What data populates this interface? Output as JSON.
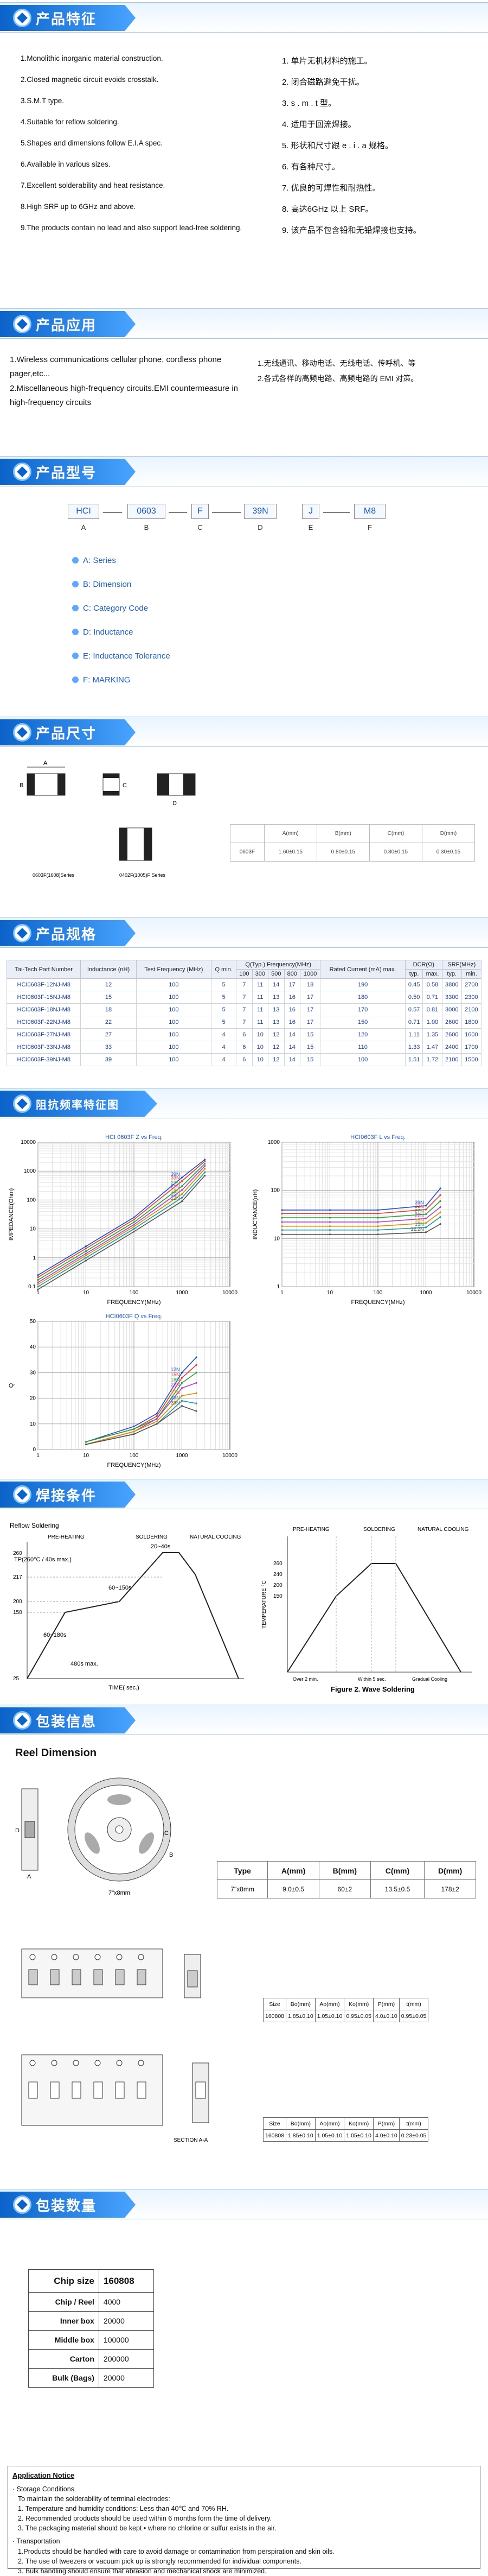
{
  "sections": {
    "features": "产品特征",
    "application": "产品应用",
    "part_number": "产品型号",
    "dimensions": "产品尺寸",
    "specifications": "产品规格",
    "impedance_curves": "阻抗频率特征图",
    "soldering": "焊接条件",
    "packaging": "包装信息",
    "quantity": "包装数量"
  },
  "features_en": [
    "1.Monolithic inorganic material construction.",
    "2.Closed magnetic circuit evoids crosstalk.",
    "3.S.M.T type.",
    "4.Suitable for reflow soldering.",
    "5.Shapes and dimensions follow E.I.A   spec.",
    "6.Available in various sizes.",
    "7.Excellent solderability and heat resistance.",
    "8.High SRF up to 6GHz and above.",
    "9.The products contain no lead and also support lead-free soldering."
  ],
  "features_cn": [
    "1. 单片无机材料的施工。",
    "2. 闭合磁路避免干扰。",
    "3. s . m . t 型。",
    "4. 适用于回流焊接。",
    "5. 形状和尺寸跟 e . i . a 规格。",
    "6. 有各种尺寸。",
    "7. 优良的可焊性和耐热性。",
    "8. 高达6GHz 以上 SRF。",
    "9. 该产品不包含铅和无铅焊接也支持。"
  ],
  "application_en": [
    "1.Wireless communications cellular phone, cordless phone pager,etc...",
    "2.Miscellaneous high-frequency circuits.EMI countermeasure in high-frequency circuits"
  ],
  "application_cn": [
    "1.无线通讯、移动电话、无线电话、传呼机、等",
    "2.各式各样的高频电路、高频电路的 EMI 对策。"
  ],
  "part_code": [
    {
      "code": "HCI",
      "letter": "A"
    },
    {
      "code": "0603",
      "letter": "B"
    },
    {
      "code": "F",
      "letter": "C"
    },
    {
      "code": "39N",
      "letter": "D"
    },
    {
      "code": "J",
      "letter": "E"
    },
    {
      "code": "M8",
      "letter": "F"
    }
  ],
  "part_legend": [
    "A: Series",
    "B: Dimension",
    "C: Category Code",
    "D: Inductance",
    "E: Inductance Tolerance",
    "F: MARKING"
  ],
  "dim_labels": {
    "caption_left": "0603F(1608)Series",
    "caption_right": "0402F(1005)F Series",
    "dim_a": "A",
    "dim_b": "B",
    "dim_c": "C",
    "dim_d": "D"
  },
  "dim_table": {
    "headers": [
      "",
      "A(mm)",
      "B(mm)",
      "C(mm)",
      "D(mm)"
    ],
    "row": [
      "0603F",
      "1.60±0.15",
      "0.80±0.15",
      "0.80±0.15",
      "0.30±0.15"
    ]
  },
  "spec_table": {
    "head1": [
      "Tai-Tech Part Number",
      "Inductance (nH)",
      "Test Frequency (MHz)",
      "Q min.",
      "Q(Typ.)  Frequency(MHz)",
      "Rated Current (mA) max.",
      "DCR(Ω)",
      "SRF(MHz)"
    ],
    "head2": [
      "100",
      "300",
      "500",
      "800",
      "1000",
      "typ.",
      "max.",
      "typ.",
      "min."
    ],
    "rows": [
      [
        "HCI0603F-12NJ-M8",
        "12",
        "100",
        "5",
        "7",
        "11",
        "14",
        "17",
        "18",
        "190",
        "0.45",
        "0.58",
        "3800",
        "2700"
      ],
      [
        "HCI0603F-15NJ-M8",
        "15",
        "100",
        "5",
        "7",
        "11",
        "13",
        "16",
        "17",
        "180",
        "0.50",
        "0.71",
        "3300",
        "2300"
      ],
      [
        "HCI0603F-18NJ-M8",
        "18",
        "100",
        "5",
        "7",
        "11",
        "13",
        "16",
        "17",
        "170",
        "0.57",
        "0.81",
        "3000",
        "2100"
      ],
      [
        "HCI0603F-22NJ-M8",
        "22",
        "100",
        "5",
        "7",
        "11",
        "13",
        "16",
        "17",
        "150",
        "0.71",
        "1.00",
        "2600",
        "1800"
      ],
      [
        "HCI0603F-27NJ-M8",
        "27",
        "100",
        "4",
        "6",
        "10",
        "12",
        "14",
        "15",
        "120",
        "1.11",
        "1.35",
        "2600",
        "1600"
      ],
      [
        "HCI0603F-33NJ-M8",
        "33",
        "100",
        "4",
        "6",
        "10",
        "12",
        "14",
        "15",
        "110",
        "1.33",
        "1.47",
        "2400",
        "1700"
      ],
      [
        "HCI0603F-39NJ-M8",
        "39",
        "100",
        "4",
        "6",
        "10",
        "12",
        "14",
        "15",
        "100",
        "1.51",
        "1.72",
        "2100",
        "1500"
      ]
    ]
  },
  "chart_data": [
    {
      "type": "line",
      "title": "HCI 0603F Z vs Freq.",
      "xlabel": "FREQUENCY(MHz)",
      "ylabel": "IMPEDANCE(Ohm)",
      "xscale": "log",
      "yscale": "log",
      "xlim": [
        1,
        10000
      ],
      "ylim": [
        0.1,
        10000
      ],
      "x": [
        1,
        10,
        100,
        1000,
        3000
      ],
      "series": [
        {
          "name": "39N",
          "values": [
            0.25,
            2.5,
            25,
            600,
            2500
          ]
        },
        {
          "name": "33N",
          "values": [
            0.21,
            2.1,
            21,
            450,
            2200
          ]
        },
        {
          "name": "27N",
          "values": [
            0.17,
            1.7,
            17,
            300,
            1800
          ]
        },
        {
          "name": "22N",
          "values": [
            0.14,
            1.4,
            14,
            220,
            1500
          ]
        },
        {
          "name": "18N",
          "values": [
            0.12,
            1.2,
            12,
            160,
            1200
          ]
        },
        {
          "name": "15N",
          "values": [
            0.1,
            1.0,
            10,
            120,
            900
          ]
        },
        {
          "name": "12N",
          "values": [
            0.08,
            0.8,
            8,
            90,
            700
          ]
        }
      ]
    },
    {
      "type": "line",
      "title": "HCI0603F L vs Freq.",
      "xlabel": "FREQUENCY(MHz)",
      "ylabel": "INDUCTANCE(nH)",
      "xscale": "log",
      "yscale": "log",
      "xlim": [
        1,
        10000
      ],
      "ylim": [
        1,
        1000
      ],
      "x": [
        1,
        10,
        100,
        1000,
        2000
      ],
      "series": [
        {
          "name": "39N",
          "values": [
            39,
            39,
            39,
            48,
            110
          ]
        },
        {
          "name": "33N",
          "values": [
            33,
            33,
            33,
            40,
            80
          ]
        },
        {
          "name": "27N",
          "values": [
            27,
            27,
            27,
            32,
            60
          ]
        },
        {
          "name": "22N",
          "values": [
            22,
            22,
            22,
            26,
            45
          ]
        },
        {
          "name": "18N",
          "values": [
            18,
            18,
            18,
            21,
            35
          ]
        },
        {
          "name": "15N",
          "values": [
            15,
            15,
            15,
            17,
            28
          ]
        },
        {
          "name": "12.2N",
          "values": [
            12.2,
            12.2,
            12.2,
            13.5,
            20
          ]
        }
      ]
    },
    {
      "type": "line",
      "title": "HCI0603F Q vs Freq.",
      "xlabel": "FREQUENCY(MHz)",
      "ylabel": "Q",
      "xscale": "log",
      "yscale": "linear",
      "xlim": [
        1,
        10000
      ],
      "ylim": [
        0,
        50
      ],
      "x": [
        10,
        100,
        300,
        1000,
        2000
      ],
      "series": [
        {
          "name": "12N",
          "values": [
            3,
            9,
            14,
            30,
            36
          ]
        },
        {
          "name": "15N",
          "values": [
            3,
            8,
            13,
            28,
            33
          ]
        },
        {
          "name": "18N",
          "values": [
            3,
            8,
            12,
            26,
            30
          ]
        },
        {
          "name": "22N",
          "values": [
            2,
            7,
            12,
            24,
            26
          ]
        },
        {
          "name": "27N",
          "values": [
            2,
            7,
            11,
            21,
            22
          ]
        },
        {
          "name": "33N",
          "values": [
            2,
            6,
            10,
            19,
            18
          ]
        },
        {
          "name": "39N",
          "values": [
            2,
            6,
            10,
            17,
            15
          ]
        }
      ]
    }
  ],
  "reflow": {
    "title": "Reflow Soldering",
    "pre_heating": "PRE-HEATING",
    "soldering": "SOLDERING",
    "natural_cooling": "NATURAL COOLING",
    "tp": "TP(260°C / 40s max.)",
    "t20_40": "20~40s",
    "t60_150": "60~150s",
    "t60_180": "60~180s",
    "t480": "480s max.",
    "y_labels": [
      "260",
      "217",
      "200",
      "150",
      "25"
    ],
    "xlabel": "TIME( sec.)"
  },
  "wave": {
    "title": "Figure 2. Wave Soldering",
    "pre_heating": "PRE-HEATING",
    "soldering": "SOLDERING",
    "natural_cooling": "NATURAL COOLING",
    "ylabel": "TEMPERATURE °C",
    "y_labels": [
      "260",
      "240",
      "200",
      "150"
    ],
    "x_labels": [
      "Over 2 min.",
      "Within 5 sec.",
      "Gradual Cooling"
    ]
  },
  "reel": {
    "title": "Reel Dimension",
    "caption": "7\"x8mm",
    "labels": {
      "a": "A",
      "b": "B",
      "c": "C",
      "d": "D"
    },
    "table_headers": [
      "Type",
      "A(mm)",
      "B(mm)",
      "C(mm)",
      "D(mm)"
    ],
    "table_row": [
      "7\"x8mm",
      "9.0±0.5",
      "60±2",
      "13.5±0.5",
      "178±2"
    ]
  },
  "tape1": {
    "headers": [
      "Size",
      "Bo(mm)",
      "Ao(mm)",
      "Ko(mm)",
      "P(mm)",
      "t(mm)"
    ],
    "row": [
      "160808",
      "1.85±0.10",
      "1.05±0.10",
      "0.95±0.05",
      "4.0±0.10",
      "0.95±0.05"
    ]
  },
  "tape2": {
    "headers": [
      "Size",
      "Bo(mm)",
      "Ao(mm)",
      "Ko(mm)",
      "P(mm)",
      "t(mm)"
    ],
    "row": [
      "160808",
      "1.85±0.10",
      "1.05±0.10",
      "1.05±0.10",
      "4.0±0.10",
      "0.23±0.05"
    ],
    "section_label": "SECTION A-A"
  },
  "quantity": {
    "rows": [
      [
        "Chip size",
        "160808"
      ],
      [
        "Chip / Reel",
        "4000"
      ],
      [
        "Inner box",
        "20000"
      ],
      [
        "Middle box",
        "100000"
      ],
      [
        "Carton",
        "200000"
      ],
      [
        "Bulk (Bags)",
        "20000"
      ]
    ]
  },
  "notice": {
    "title": "Application Notice",
    "storage_title": "· Storage Conditions",
    "storage_intro": "To maintain the solderability of terminal electrodes:",
    "storage": [
      "1. Temperature and humidity conditions: Less than 40℃  and 70% RH.",
      "2. Recommended products should be used within 6 months form the time of delivery.",
      "3. The packaging material should be kept • where no chlorine or sulfur exists in the air."
    ],
    "transport_title": "· Transportation",
    "transport": [
      "1.Products should be handled with care to avoid damage or contamination from perspiration and skin oils.",
      "2. The use of tweezers or vacuum pick up is strongly recommended for individual components.",
      "3. Bulk handling should ensure that abrasion and mechanical shock are minimized."
    ]
  }
}
